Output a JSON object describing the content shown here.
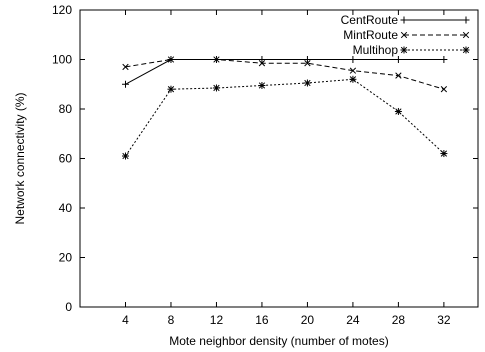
{
  "chart_data": {
    "type": "line",
    "xlabel": "Mote neighbor density (number of motes)",
    "ylabel": "Network connectivity (%)",
    "x_ticks": [
      4,
      8,
      12,
      16,
      20,
      24,
      28,
      32
    ],
    "y_ticks": [
      0,
      20,
      40,
      60,
      80,
      100,
      120
    ],
    "xlim": [
      0,
      35
    ],
    "ylim": [
      0,
      120
    ],
    "grid": false,
    "legend_position": "top-right",
    "series": [
      {
        "name": "CentRoute",
        "marker": "plus",
        "line_style": "solid",
        "x": [
          4,
          8,
          12,
          16,
          20,
          24,
          28,
          32
        ],
        "y": [
          90,
          100,
          100,
          100,
          100,
          100,
          100,
          100
        ]
      },
      {
        "name": "MintRoute",
        "marker": "cross",
        "line_style": "dashed",
        "x": [
          4,
          8,
          12,
          16,
          20,
          24,
          28,
          32
        ],
        "y": [
          97,
          100,
          100,
          98.5,
          98.5,
          95.5,
          93.5,
          88
        ]
      },
      {
        "name": "Multihop",
        "marker": "star",
        "line_style": "dotted",
        "x": [
          4,
          8,
          12,
          16,
          20,
          24,
          28,
          32
        ],
        "y": [
          61,
          88,
          88.5,
          89.5,
          90.5,
          92,
          79,
          62
        ]
      }
    ]
  }
}
